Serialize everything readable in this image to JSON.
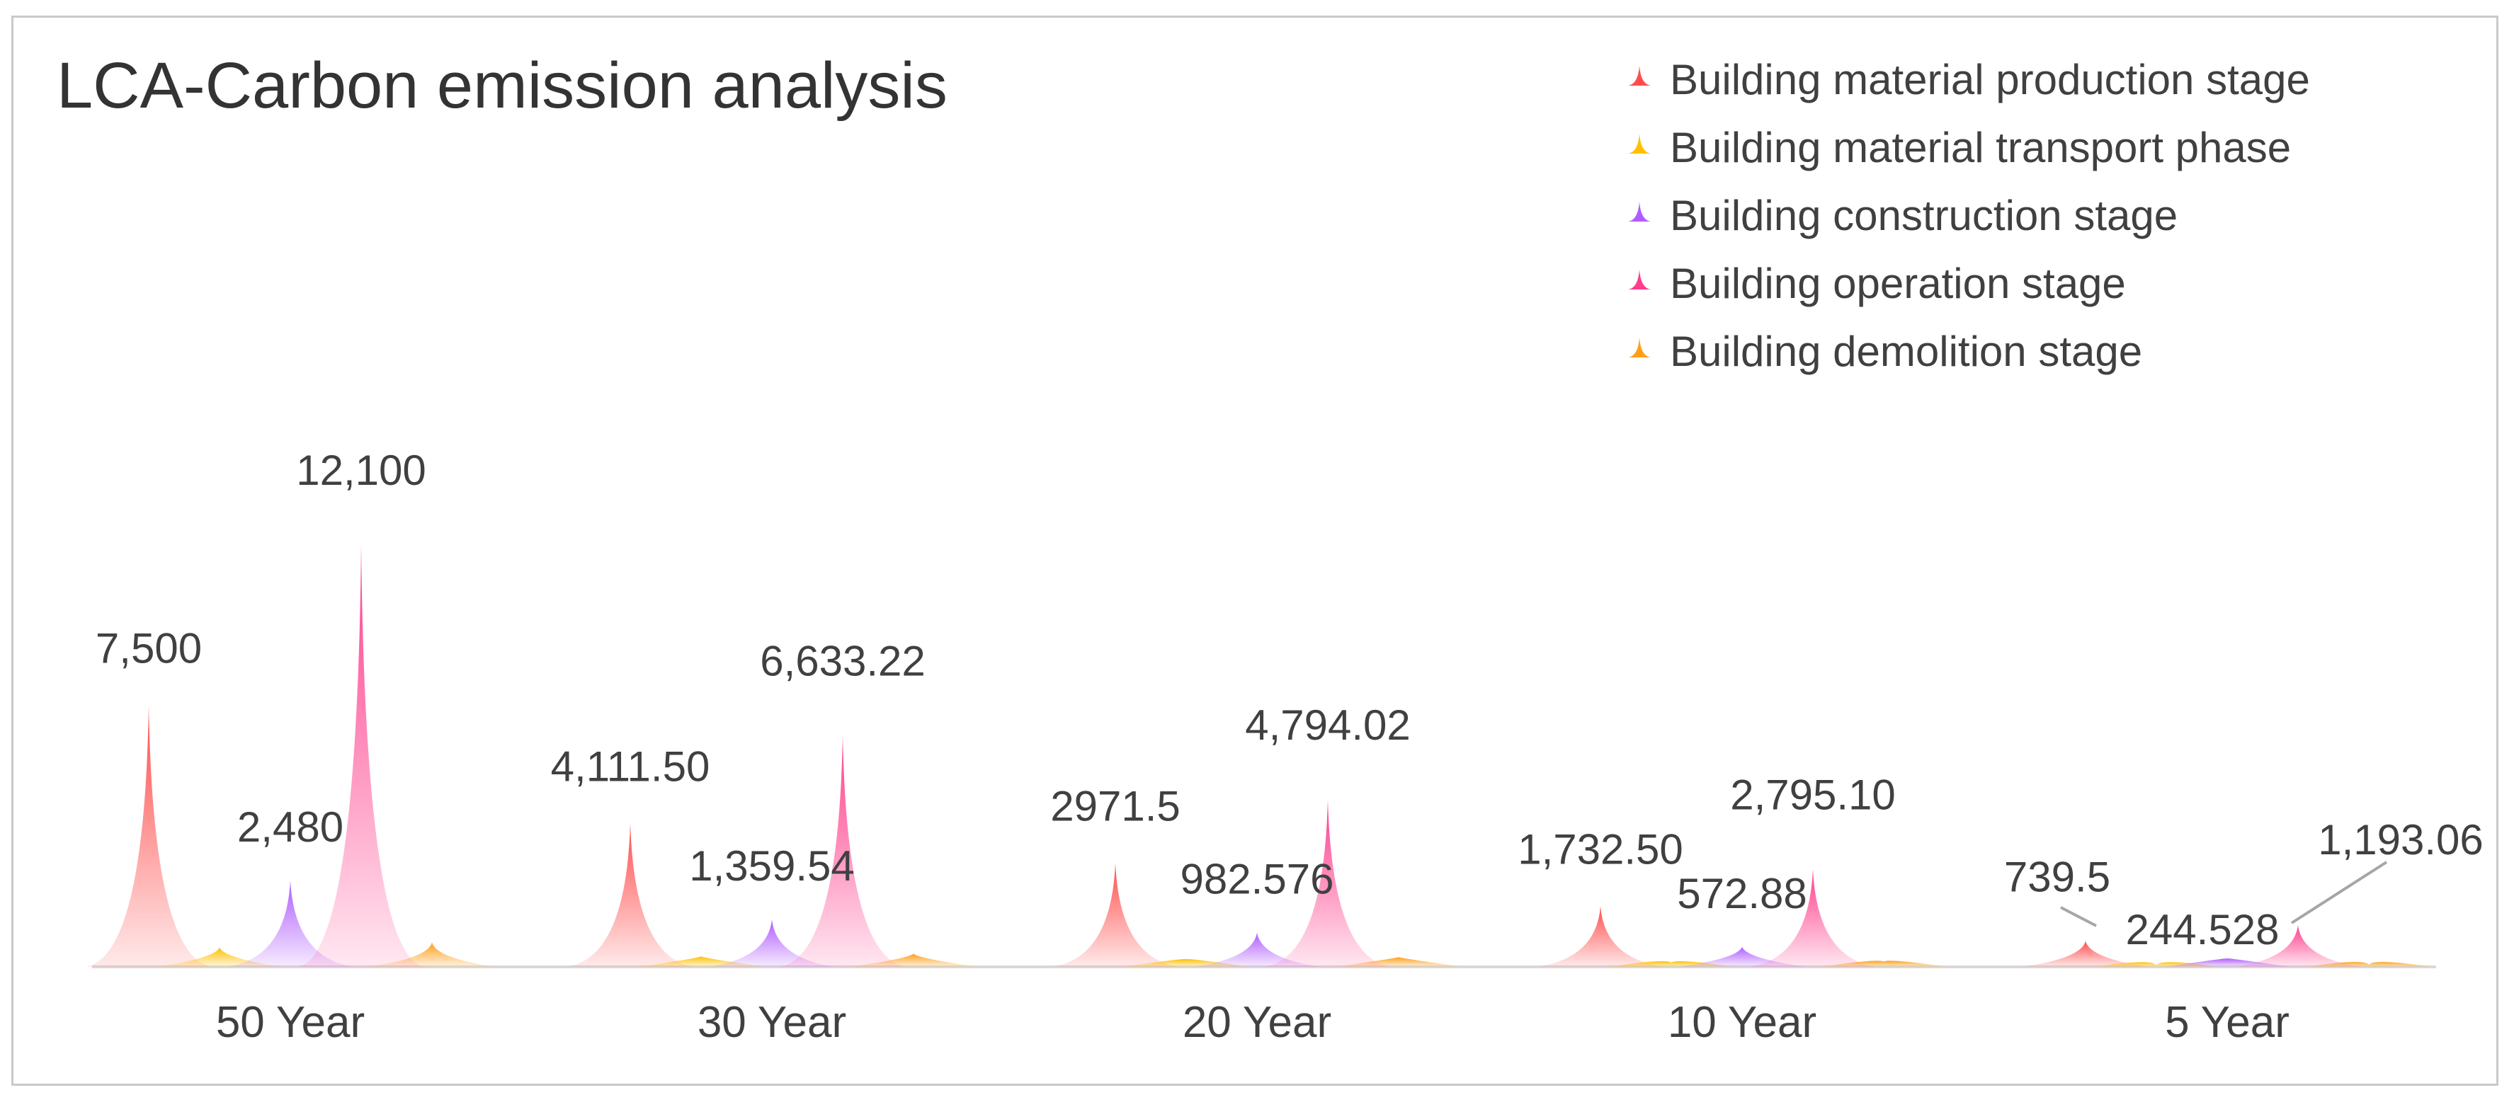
{
  "chart_data": {
    "type": "bar",
    "title": "LCA-Carbon emission analysis",
    "xlabel": "",
    "ylabel": "",
    "ylim": [
      0,
      13000
    ],
    "grid": false,
    "legend_position": "top-right",
    "categories": [
      "50 Year",
      "30 Year",
      "20 Year",
      "10 Year",
      "5 Year"
    ],
    "series": [
      {
        "name": "Building material production stage",
        "color": "#ff4d4d",
        "values": [
          7500,
          4111.5,
          2971.5,
          1732.5,
          739.5
        ],
        "labels": [
          "7,500",
          "4,111.50",
          "2971.5",
          "1,732.50",
          "739.5"
        ]
      },
      {
        "name": "Building material transport phase",
        "color": "#ffc000",
        "values": [
          560,
          300,
          220,
          120,
          50
        ],
        "labels": [
          "",
          "",
          "",
          "",
          ""
        ]
      },
      {
        "name": "Building construction stage",
        "color": "#b05cff",
        "values": [
          2480,
          1359.54,
          982.576,
          572.88,
          244.528
        ],
        "labels": [
          "2,480",
          "1,359.54",
          "982.576",
          "572.88",
          "244.528"
        ]
      },
      {
        "name": "Building operation stage",
        "color": "#ff3d8b",
        "values": [
          12100,
          6633.22,
          4794.02,
          2795.1,
          1193.06
        ],
        "labels": [
          "12,100",
          "6,633.22",
          "4,794.02",
          "2,795.10",
          "1,193.06"
        ]
      },
      {
        "name": "Building demolition stage",
        "color": "#ff9f1a",
        "values": [
          700,
          380,
          280,
          150,
          60
        ],
        "labels": [
          "",
          "",
          "",
          "",
          ""
        ]
      }
    ]
  }
}
